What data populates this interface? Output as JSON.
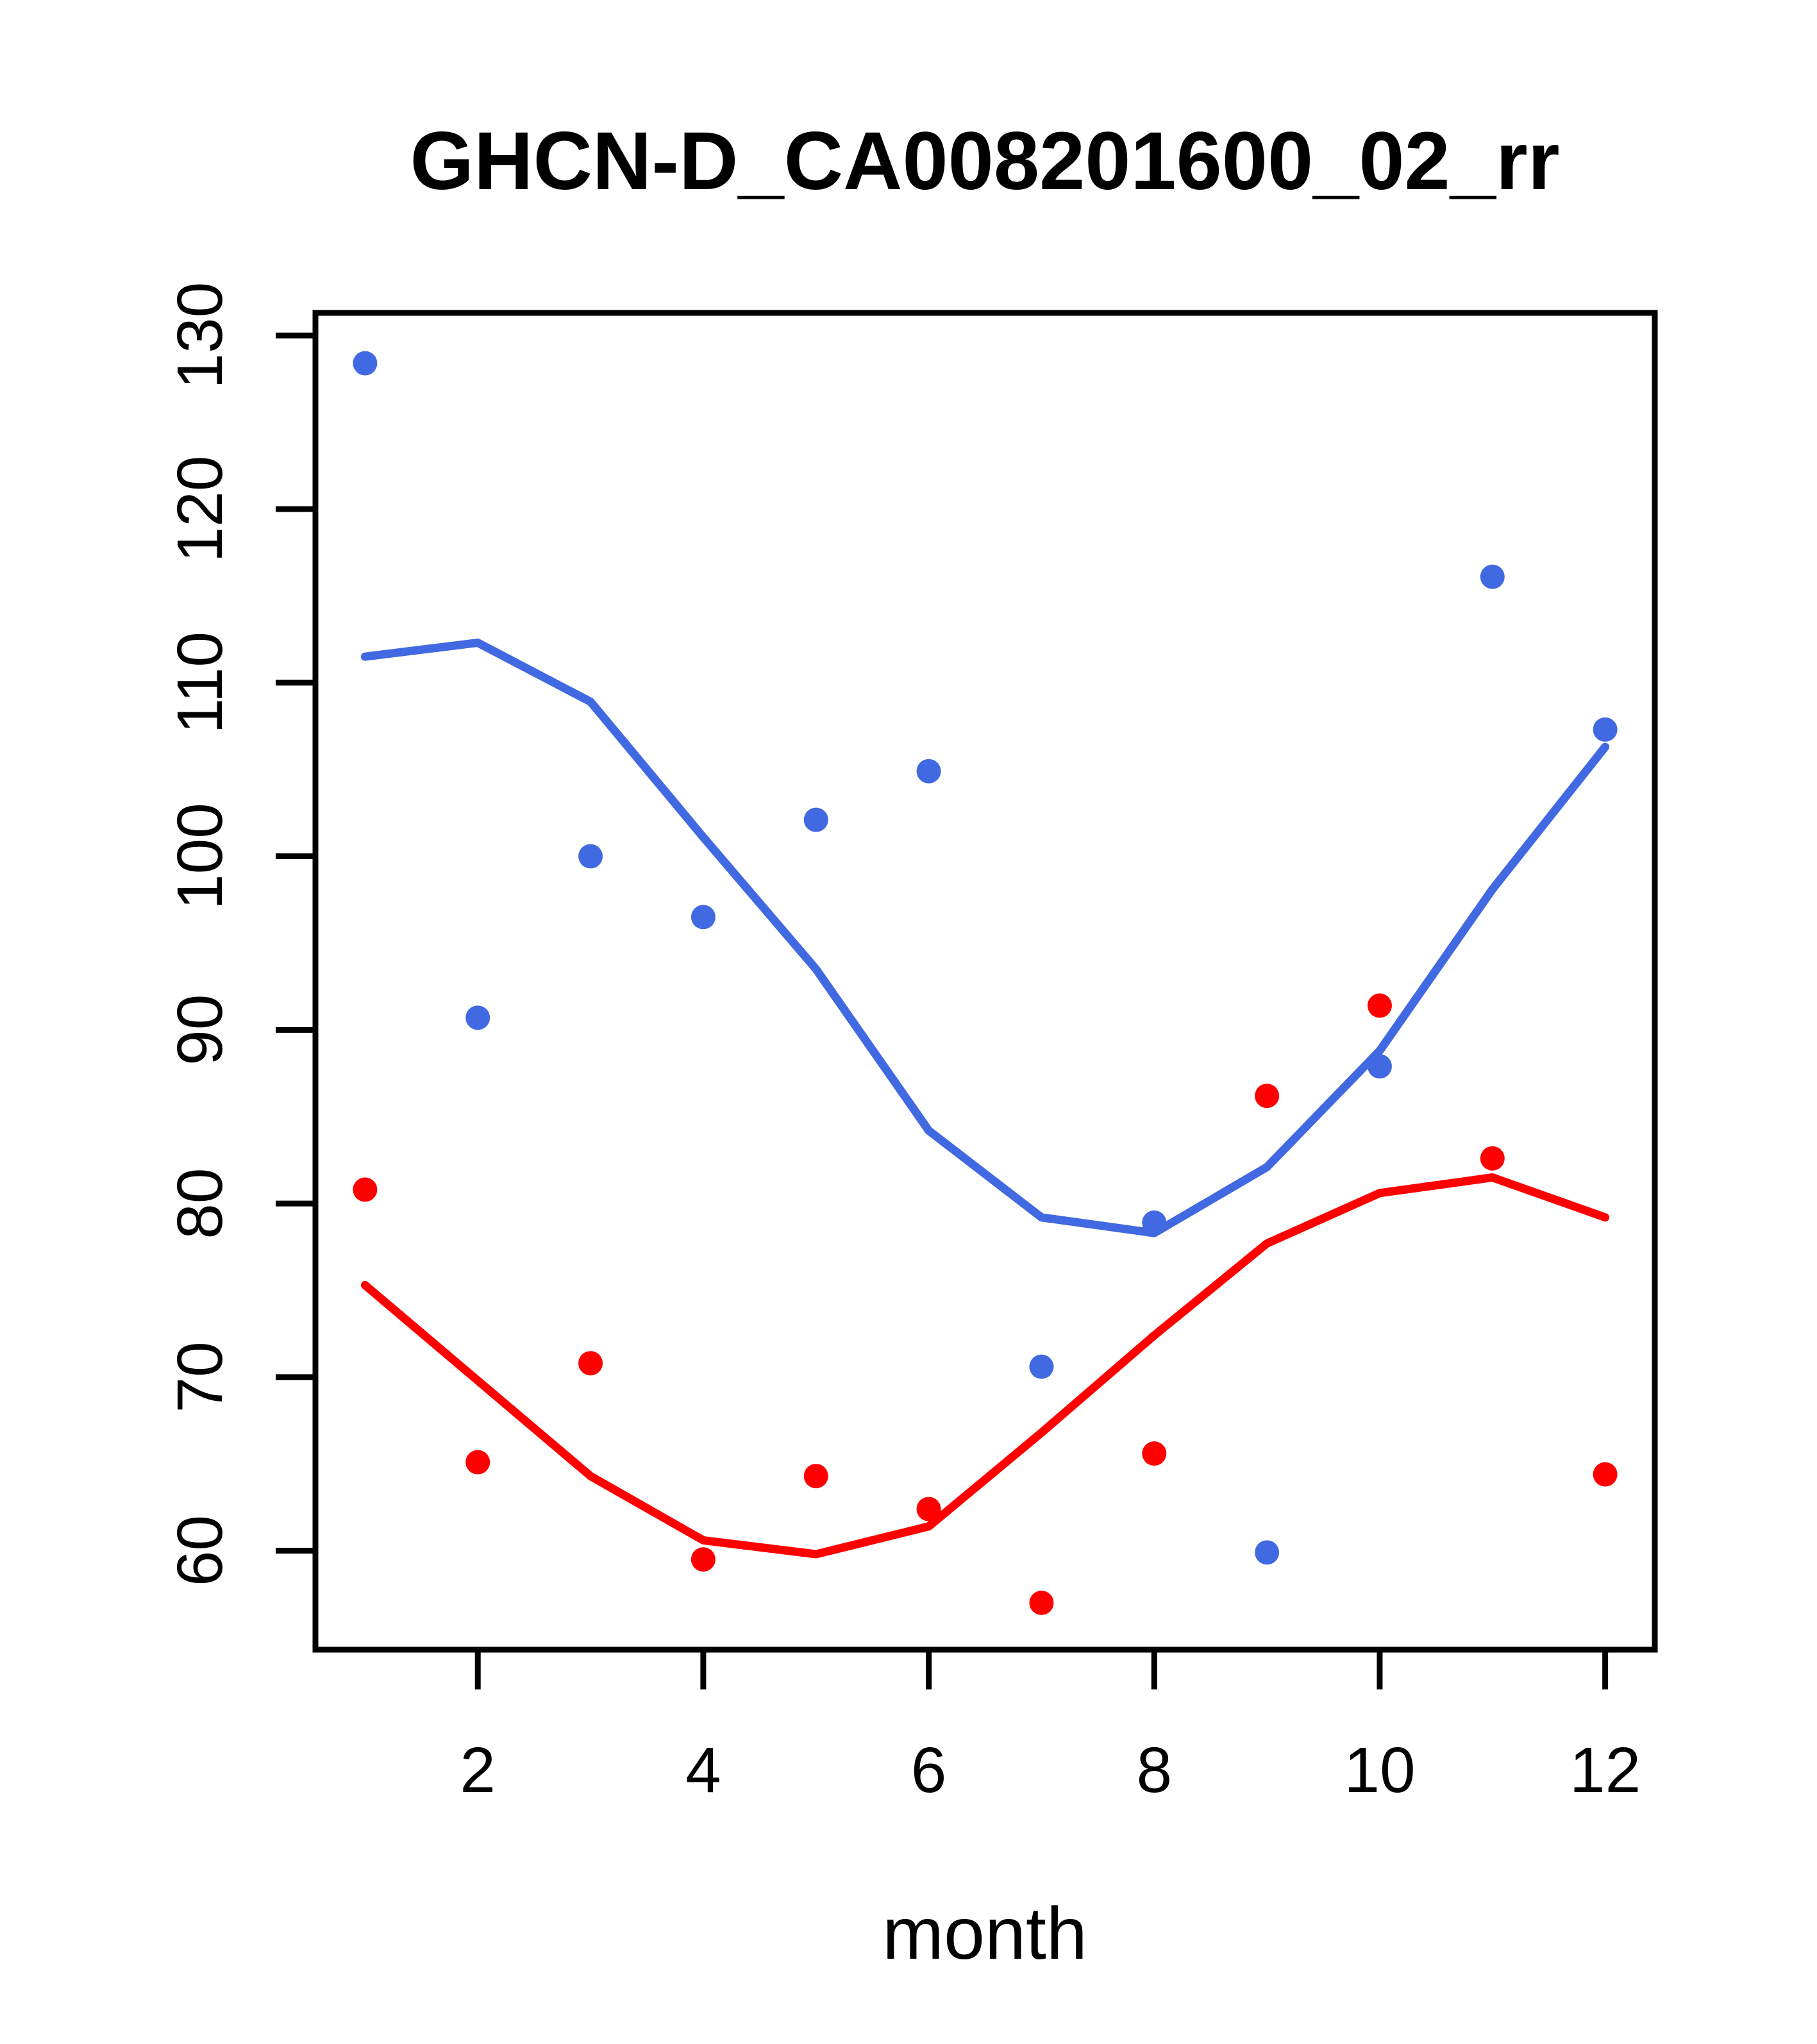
{
  "chart_data": {
    "type": "scatter",
    "title": "GHCN-D_CA008201600_02_rr",
    "xlabel": "month",
    "ylabel": "",
    "grid": false,
    "legend": "none",
    "x": [
      1,
      2,
      3,
      4,
      5,
      6,
      7,
      8,
      9,
      10,
      11,
      12
    ],
    "x_ticks": [
      2,
      4,
      6,
      8,
      10,
      12
    ],
    "y_ticks": [
      60,
      70,
      80,
      90,
      100,
      110,
      120,
      130
    ],
    "xlim": [
      0.56,
      12.44
    ],
    "ylim": [
      54.3,
      131.3
    ],
    "colors": {
      "blue": "#4169E1",
      "red": "#FF0000",
      "axis": "#000000"
    },
    "series": [
      {
        "name": "blue-points",
        "kind": "points",
        "color": "#4169E1",
        "values": [
          128.4,
          90.7,
          100.0,
          96.5,
          102.1,
          104.9,
          70.6,
          78.9,
          59.9,
          87.9,
          116.1,
          107.3
        ]
      },
      {
        "name": "blue-lowess-line",
        "kind": "line",
        "color": "#4169E1",
        "values": [
          111.5,
          112.3,
          108.9,
          101.1,
          93.5,
          84.2,
          79.2,
          78.3,
          82.1,
          88.8,
          98.1,
          106.3
        ]
      },
      {
        "name": "red-points",
        "kind": "points",
        "color": "#FF0000",
        "values": [
          80.8,
          65.1,
          70.8,
          59.5,
          64.3,
          62.4,
          57.0,
          65.6,
          86.2,
          91.4,
          82.6,
          64.4
        ]
      },
      {
        "name": "red-lowess-line",
        "kind": "line",
        "color": "#FF0000",
        "values": [
          75.3,
          69.8,
          64.3,
          60.6,
          59.8,
          61.4,
          66.8,
          72.4,
          77.7,
          80.6,
          81.5,
          79.2
        ]
      }
    ]
  }
}
